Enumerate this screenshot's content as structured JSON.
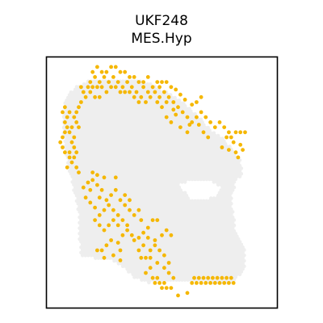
{
  "chart_data": {
    "type": "scatter",
    "title_lines": [
      "UKF248",
      "MES.Hyp"
    ],
    "xlim": [
      0,
      100
    ],
    "ylim": [
      0,
      100
    ],
    "grid": false,
    "axes_ticks": false,
    "colors": {
      "background_spot": "#eeeeee",
      "highlight_spot": "#f5b700",
      "frame": "#000000"
    },
    "tissue_outline": [
      [
        15,
        79
      ],
      [
        14,
        72
      ],
      [
        14,
        63
      ],
      [
        12,
        54
      ],
      [
        10,
        46
      ],
      [
        8,
        36
      ],
      [
        7,
        26
      ],
      [
        8,
        18
      ],
      [
        12,
        12
      ],
      [
        20,
        9
      ],
      [
        32,
        9
      ],
      [
        44,
        10
      ],
      [
        52,
        14
      ],
      [
        59,
        18
      ],
      [
        64,
        22
      ],
      [
        70,
        28
      ],
      [
        76,
        32
      ],
      [
        81,
        37
      ],
      [
        84,
        41
      ],
      [
        85,
        46
      ],
      [
        82,
        50
      ],
      [
        80,
        56
      ],
      [
        81,
        63
      ],
      [
        82,
        70
      ],
      [
        86,
        76
      ],
      [
        86,
        84
      ],
      [
        81,
        90
      ],
      [
        71,
        90
      ],
      [
        62,
        89
      ],
      [
        52,
        89
      ],
      [
        44,
        90
      ],
      [
        38,
        88
      ],
      [
        34,
        84
      ],
      [
        28,
        81
      ],
      [
        20,
        80
      ]
    ],
    "cutouts": [
      [
        [
          57,
          51
        ],
        [
          63,
          57
        ],
        [
          73,
          56
        ],
        [
          76,
          52
        ],
        [
          71,
          49
        ],
        [
          62,
          49
        ]
      ]
    ],
    "highlight_spots": [
      [
        46,
        88
      ],
      [
        48,
        88
      ],
      [
        47,
        90
      ],
      [
        49,
        90
      ],
      [
        51,
        90
      ],
      [
        52,
        92
      ],
      [
        54,
        92
      ],
      [
        50,
        92
      ],
      [
        63,
        90
      ],
      [
        65,
        90
      ],
      [
        67,
        90
      ],
      [
        69,
        90
      ],
      [
        71,
        90
      ],
      [
        73,
        90
      ],
      [
        75,
        90
      ],
      [
        77,
        90
      ],
      [
        79,
        90
      ],
      [
        81,
        90
      ],
      [
        64,
        88
      ],
      [
        66,
        88
      ],
      [
        68,
        88
      ],
      [
        70,
        88
      ],
      [
        72,
        88
      ],
      [
        74,
        88
      ],
      [
        76,
        88
      ],
      [
        78,
        88
      ],
      [
        80,
        88
      ],
      [
        53,
        86
      ],
      [
        51,
        84
      ],
      [
        55,
        88
      ],
      [
        57,
        95
      ],
      [
        61,
        94
      ],
      [
        43,
        86
      ],
      [
        45,
        84
      ],
      [
        48,
        82
      ],
      [
        53,
        82
      ],
      [
        41,
        80
      ],
      [
        43,
        80
      ],
      [
        45,
        80
      ],
      [
        49,
        77
      ],
      [
        51,
        79
      ],
      [
        47,
        75
      ],
      [
        45,
        77
      ],
      [
        42,
        75
      ],
      [
        40,
        77
      ],
      [
        38,
        73
      ],
      [
        40,
        72
      ],
      [
        42,
        70
      ],
      [
        44,
        72
      ],
      [
        47,
        73
      ],
      [
        50,
        71
      ],
      [
        52,
        69
      ],
      [
        54,
        71
      ],
      [
        44,
        68
      ],
      [
        46,
        65
      ],
      [
        48,
        65
      ],
      [
        35,
        69
      ],
      [
        37,
        71
      ],
      [
        33,
        71
      ],
      [
        25,
        69
      ],
      [
        23,
        67
      ],
      [
        21,
        65
      ],
      [
        23,
        63
      ],
      [
        25,
        61
      ],
      [
        27,
        59
      ],
      [
        29,
        61
      ],
      [
        31,
        63
      ],
      [
        29,
        65
      ],
      [
        27,
        67
      ],
      [
        31,
        67
      ],
      [
        33,
        65
      ],
      [
        26,
        57
      ],
      [
        28,
        55
      ],
      [
        30,
        53
      ],
      [
        32,
        57
      ],
      [
        34,
        59
      ],
      [
        36,
        61
      ],
      [
        38,
        63
      ],
      [
        40,
        61
      ],
      [
        41,
        65
      ],
      [
        21,
        60
      ],
      [
        19,
        58
      ],
      [
        17,
        56
      ],
      [
        19,
        53
      ],
      [
        22,
        51
      ],
      [
        24,
        53
      ],
      [
        23,
        56
      ],
      [
        20,
        49
      ],
      [
        22,
        47
      ],
      [
        25,
        48
      ],
      [
        30,
        48
      ],
      [
        34,
        55
      ],
      [
        36,
        57
      ],
      [
        28,
        73
      ],
      [
        26,
        75
      ],
      [
        24,
        77
      ],
      [
        22,
        77
      ],
      [
        29,
        79
      ],
      [
        32,
        81
      ],
      [
        25,
        80
      ],
      [
        32,
        77
      ],
      [
        31,
        74
      ],
      [
        35,
        67
      ],
      [
        16,
        52
      ],
      [
        18,
        50
      ],
      [
        20,
        46
      ],
      [
        14,
        46
      ],
      [
        13,
        44
      ],
      [
        10,
        40
      ],
      [
        8,
        38
      ],
      [
        7,
        36
      ],
      [
        6,
        34
      ],
      [
        7,
        32
      ],
      [
        8,
        30
      ],
      [
        9,
        28
      ],
      [
        8,
        26
      ],
      [
        9,
        24
      ],
      [
        7,
        22
      ],
      [
        8,
        20
      ],
      [
        10,
        22
      ],
      [
        12,
        24
      ],
      [
        13,
        26
      ],
      [
        11,
        28
      ],
      [
        10,
        30
      ],
      [
        12,
        32
      ],
      [
        11,
        34
      ],
      [
        12,
        36
      ],
      [
        10,
        38
      ],
      [
        11,
        42
      ],
      [
        9,
        44
      ],
      [
        12,
        40
      ],
      [
        13,
        38
      ],
      [
        14,
        28
      ],
      [
        13,
        22
      ],
      [
        14,
        20
      ],
      [
        15,
        18
      ],
      [
        17,
        16
      ],
      [
        16,
        14
      ],
      [
        15,
        12
      ],
      [
        19,
        14
      ],
      [
        18,
        12
      ],
      [
        21,
        16
      ],
      [
        23,
        16
      ],
      [
        19,
        10
      ],
      [
        21,
        8
      ],
      [
        23,
        10
      ],
      [
        25,
        8
      ],
      [
        27,
        10
      ],
      [
        29,
        8
      ],
      [
        31,
        10
      ],
      [
        33,
        12
      ],
      [
        35,
        10
      ],
      [
        37,
        12
      ],
      [
        39,
        14
      ],
      [
        41,
        16
      ],
      [
        43,
        18
      ],
      [
        40,
        18
      ],
      [
        38,
        16
      ],
      [
        36,
        14
      ],
      [
        34,
        14
      ],
      [
        32,
        14
      ],
      [
        30,
        12
      ],
      [
        28,
        12
      ],
      [
        26,
        14
      ],
      [
        24,
        12
      ],
      [
        22,
        12
      ],
      [
        20,
        12
      ],
      [
        45,
        16
      ],
      [
        47,
        14
      ],
      [
        49,
        12
      ],
      [
        51,
        14
      ],
      [
        49,
        16
      ],
      [
        53,
        16
      ],
      [
        55,
        18
      ],
      [
        57,
        20
      ],
      [
        59,
        22
      ],
      [
        61,
        24
      ],
      [
        63,
        26
      ],
      [
        60,
        17
      ],
      [
        58,
        15
      ],
      [
        56,
        13
      ],
      [
        54,
        12
      ],
      [
        52,
        10
      ],
      [
        50,
        10
      ],
      [
        48,
        10
      ],
      [
        46,
        12
      ],
      [
        44,
        14
      ],
      [
        42,
        12
      ],
      [
        40,
        10
      ],
      [
        38,
        8
      ],
      [
        36,
        8
      ],
      [
        34,
        6
      ],
      [
        32,
        6
      ],
      [
        30,
        4
      ],
      [
        28,
        4
      ],
      [
        26,
        6
      ],
      [
        24,
        6
      ],
      [
        22,
        4
      ],
      [
        20,
        6
      ],
      [
        65,
        24
      ],
      [
        67,
        22
      ],
      [
        69,
        24
      ],
      [
        71,
        26
      ],
      [
        73,
        28
      ],
      [
        75,
        26
      ],
      [
        77,
        28
      ],
      [
        79,
        30
      ],
      [
        78,
        32
      ],
      [
        80,
        32
      ],
      [
        82,
        30
      ],
      [
        84,
        30
      ],
      [
        86,
        30
      ],
      [
        76,
        36
      ],
      [
        79,
        37
      ],
      [
        82,
        38
      ],
      [
        84,
        35
      ],
      [
        81,
        34
      ],
      [
        83,
        40
      ],
      [
        85,
        37
      ],
      [
        56,
        23
      ],
      [
        62,
        27
      ],
      [
        66,
        27
      ],
      [
        68,
        30
      ],
      [
        70,
        32
      ],
      [
        61,
        30
      ],
      [
        63,
        19
      ],
      [
        65,
        18
      ],
      [
        67,
        16
      ],
      [
        55,
        21
      ],
      [
        52,
        24
      ],
      [
        50,
        20
      ],
      [
        48,
        18
      ],
      [
        52,
        18
      ],
      [
        54,
        26
      ],
      [
        58,
        28
      ],
      [
        42,
        10
      ],
      [
        44,
        8
      ]
    ]
  }
}
